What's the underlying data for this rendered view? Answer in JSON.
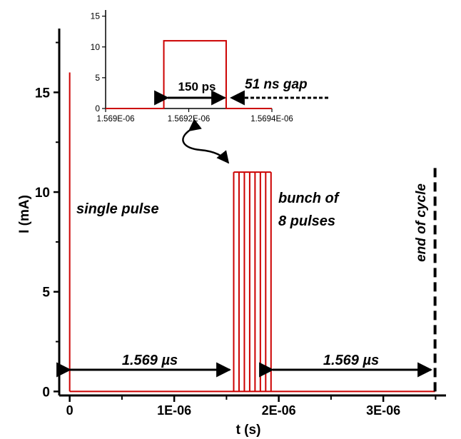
{
  "chart_data": [
    {
      "type": "line",
      "title": "",
      "xlabel": "t (s)",
      "ylabel": "I (mA)",
      "xlim": [
        -1e-07,
        3.6e-06
      ],
      "ylim": [
        -0.2,
        18.2
      ],
      "x_ticks": [
        0,
        1e-06,
        2e-06,
        3e-06
      ],
      "x_tick_labels": [
        "0",
        "1E-06",
        "2E-06",
        "3E-06"
      ],
      "y_ticks": [
        0,
        5,
        10,
        15
      ],
      "y_tick_labels": [
        "0",
        "5",
        "10",
        "15"
      ],
      "grid": false,
      "pulse_color": "#cc0000",
      "series": [
        {
          "values": [
            {
              "x": 0.0,
              "y": 16.0
            },
            {
              "x": 1.569e-06,
              "y": 11.0
            },
            {
              "x": 1.62e-06,
              "y": 11.0
            },
            {
              "x": 1.671e-06,
              "y": 11.0
            },
            {
              "x": 1.722e-06,
              "y": 11.0
            },
            {
              "x": 1.773e-06,
              "y": 11.0
            },
            {
              "x": 1.824e-06,
              "y": 11.0
            },
            {
              "x": 1.875e-06,
              "y": 11.0
            },
            {
              "x": 1.926e-06,
              "y": 11.0
            }
          ]
        }
      ],
      "end_of_cycle_x": 3.495e-06,
      "end_of_cycle_top": 11.3,
      "annotations": {
        "single_pulse": "single pulse",
        "bunch_line1": "bunch of",
        "bunch_line2": "8 pulses",
        "end_of_cycle": "end of cycle",
        "interval_left": "1.569 µs",
        "interval_right": "1.569 µs"
      }
    },
    {
      "type": "line",
      "title": "",
      "xlim": [
        1.569e-06,
        1.5694e-06
      ],
      "ylim": [
        0,
        16
      ],
      "x_tick_labels": [
        "1.569E-06",
        "1.5692E-06",
        "1.5694E-06"
      ],
      "x_ticks": [
        1.569e-06,
        1.5692e-06,
        1.5694e-06
      ],
      "y_ticks": [
        0,
        5,
        10,
        15
      ],
      "y_tick_labels": [
        "0",
        "5",
        "10",
        "15"
      ],
      "pulse": {
        "start": 1.56914e-06,
        "end": 1.56929e-06,
        "height": 11
      },
      "annotations": {
        "width_label": "150 ps",
        "gap_label": "51 ns gap"
      }
    }
  ]
}
